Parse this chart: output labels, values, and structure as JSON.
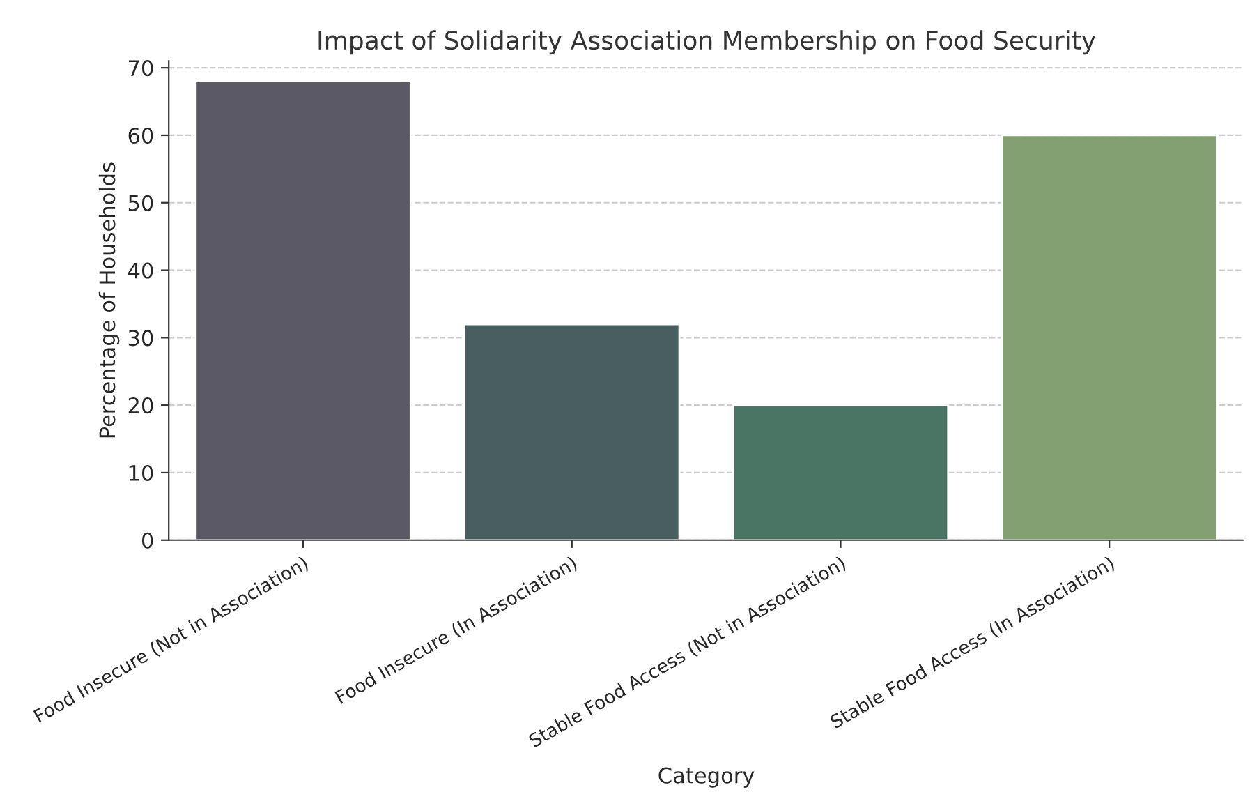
{
  "chart_data": {
    "type": "bar",
    "title": "Impact of Solidarity Association Membership on Food Security",
    "xlabel": "Category",
    "ylabel": "Percentage of Households",
    "categories": [
      "Food Insecure (Not in Association)",
      "Food Insecure (In Association)",
      "Stable Food Access (Not in Association)",
      "Stable Food Access (In Association)"
    ],
    "values": [
      68,
      32,
      20,
      60
    ],
    "colors": [
      "#5b5966",
      "#485e5f",
      "#4a7565",
      "#82a072"
    ],
    "ylim": [
      0,
      71
    ],
    "yticks": [
      0,
      10,
      20,
      30,
      40,
      50,
      60,
      70
    ],
    "grid": "y"
  }
}
